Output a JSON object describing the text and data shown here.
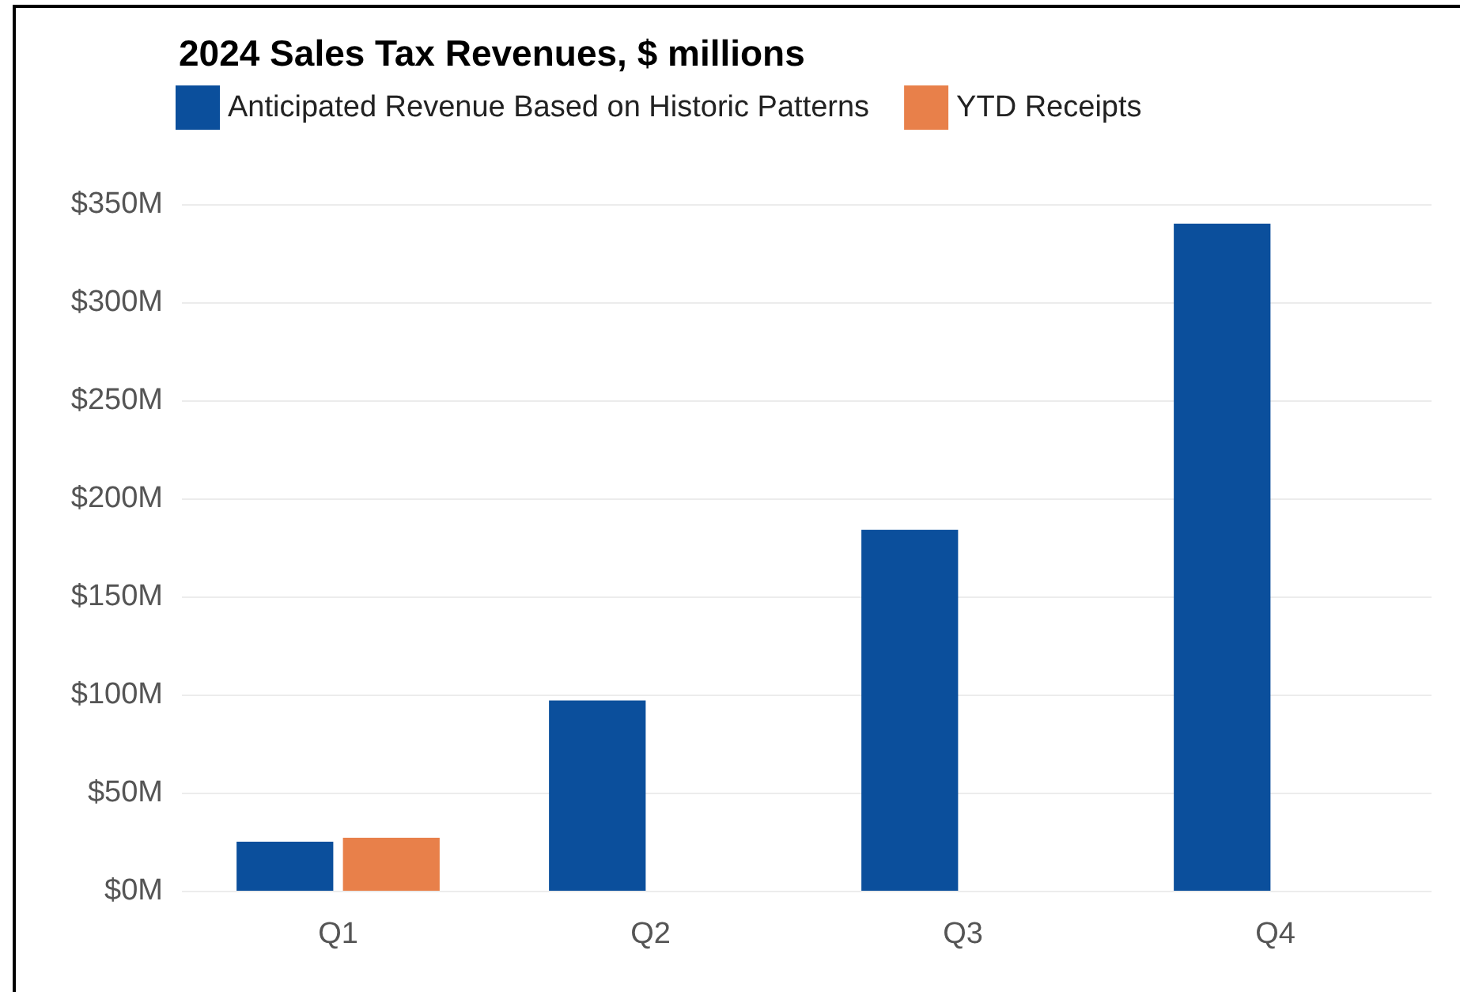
{
  "chart_data": {
    "type": "bar",
    "title": "2024 Sales Tax Revenues, $ millions",
    "categories": [
      "Q1",
      "Q2",
      "Q3",
      "Q4"
    ],
    "series": [
      {
        "name": "Anticipated Revenue Based on Historic Patterns",
        "color": "#0b4f9c",
        "values": [
          25,
          97,
          184,
          340
        ]
      },
      {
        "name": "YTD Receipts",
        "color": "#e8804a",
        "values": [
          27,
          null,
          null,
          null
        ]
      }
    ],
    "ylim": [
      0,
      350
    ],
    "yticks": [
      {
        "value": 0,
        "label": "$0M"
      },
      {
        "value": 50,
        "label": "$50M"
      },
      {
        "value": 100,
        "label": "$100M"
      },
      {
        "value": 150,
        "label": "$150M"
      },
      {
        "value": 200,
        "label": "$200M"
      },
      {
        "value": 250,
        "label": "$250M"
      },
      {
        "value": 300,
        "label": "$300M"
      },
      {
        "value": 350,
        "label": "$350M"
      }
    ],
    "grid": "y",
    "legend": "top left"
  }
}
